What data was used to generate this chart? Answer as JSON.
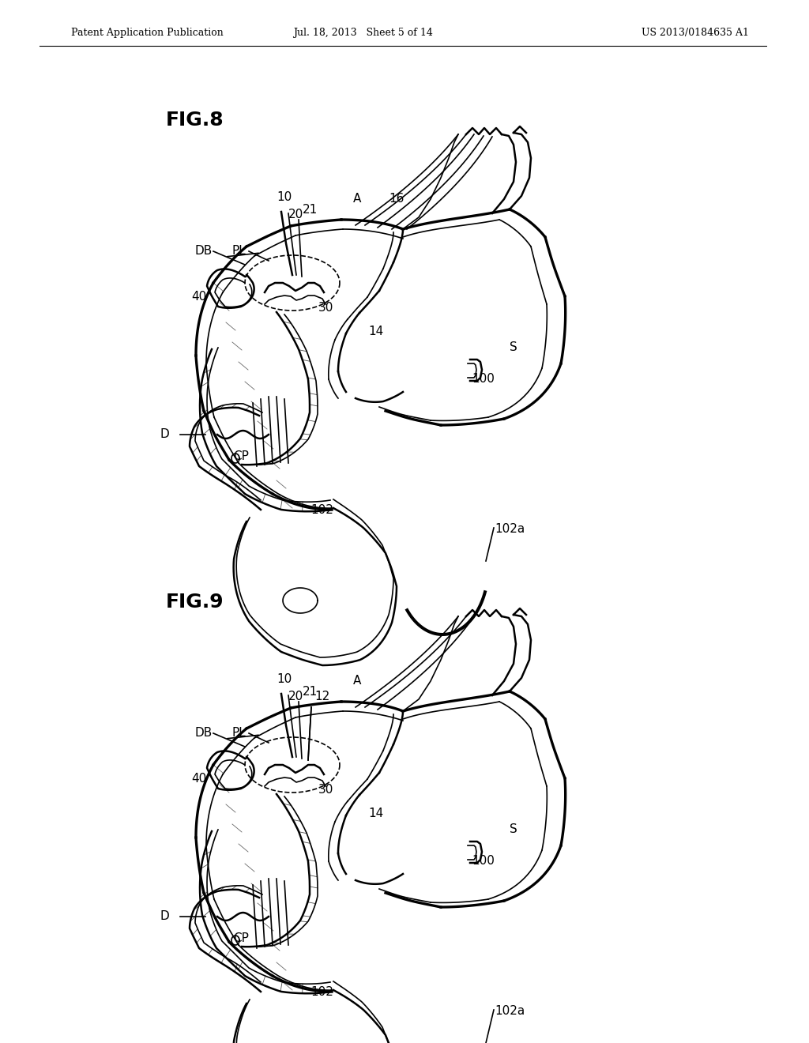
{
  "bg": "#ffffff",
  "lc": "#000000",
  "header_left": "Patent Application Publication",
  "header_mid": "Jul. 18, 2013   Sheet 5 of 14",
  "header_right": "US 2013/0184635 A1",
  "fig8_title": "FIG.8",
  "fig9_title": "FIG.9"
}
